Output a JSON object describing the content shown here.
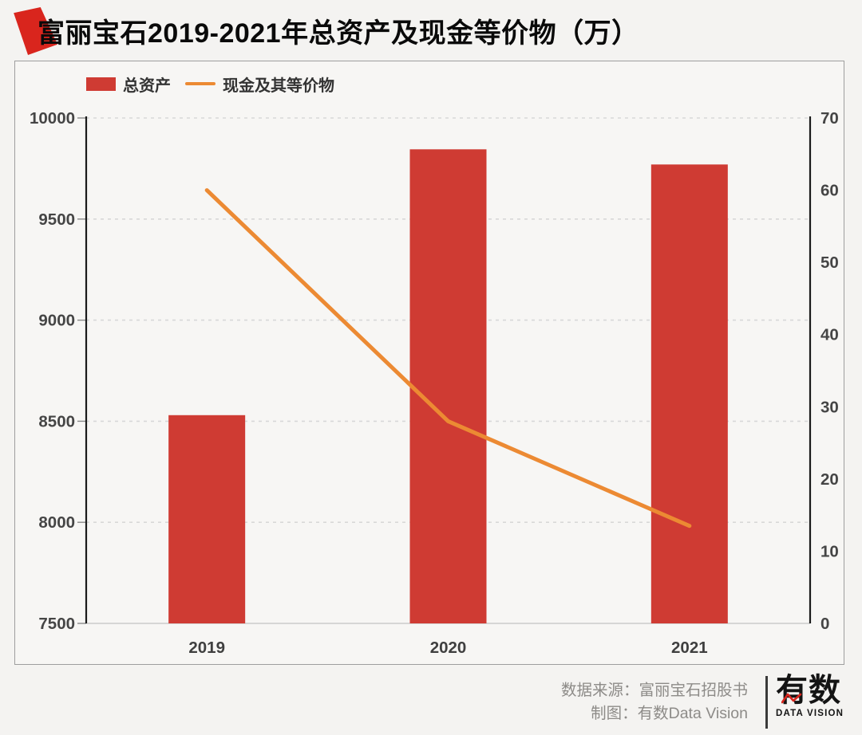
{
  "title": {
    "text": "富丽宝石2019-2021年总资产及现金等价物（万）"
  },
  "chart_data": {
    "type": "combo",
    "categories": [
      "2019",
      "2020",
      "2021"
    ],
    "series": [
      {
        "name": "总资产",
        "type": "bar",
        "axis": "left",
        "color": "#cf3b33",
        "values": [
          8530,
          9845,
          9770
        ]
      },
      {
        "name": "现金及其等价物",
        "type": "line",
        "axis": "right",
        "color": "#ec8a33",
        "values": [
          60,
          28,
          13.5
        ]
      }
    ],
    "left_axis": {
      "min": 7500,
      "max": 10000,
      "step": 500,
      "ticks": [
        7500,
        8000,
        8500,
        9000,
        9500,
        10000
      ]
    },
    "right_axis": {
      "min": 0,
      "max": 70,
      "step": 10,
      "ticks": [
        0,
        10,
        20,
        30,
        40,
        50,
        60,
        70
      ]
    },
    "grid": "horizontal-dashed",
    "legend_position": "top-left",
    "unit": "万"
  },
  "footer": {
    "source_line": "数据来源：富丽宝石招股书",
    "credit_line": "制图：有数Data Vision",
    "logo_text": "有数",
    "logo_subtext": "DATA VISION"
  },
  "colors": {
    "bar": "#cf3b33",
    "line": "#ec8a33",
    "title_marker": "#d9251d",
    "axis": "#1a1a1a",
    "grid": "#d8d8d8",
    "baseline": "#c2c2c2",
    "tick_label": "#454545",
    "category_label": "#3f3f3f",
    "footer_text": "#8d8b88"
  }
}
